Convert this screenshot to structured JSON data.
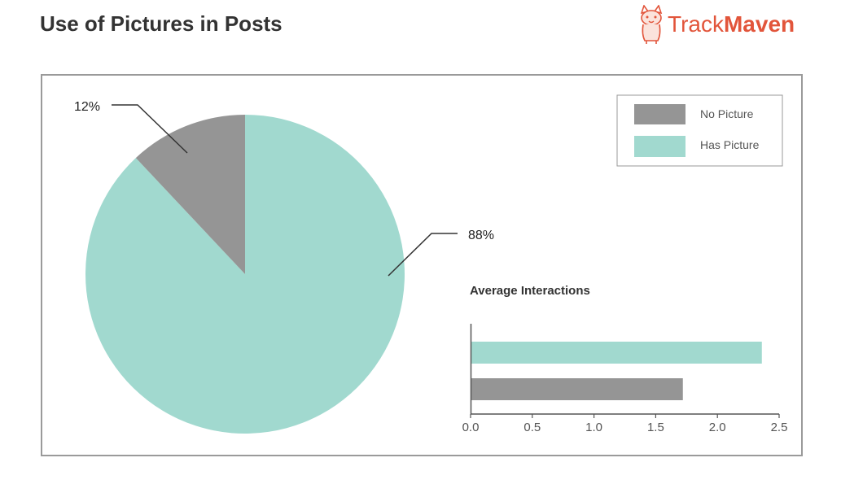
{
  "page": {
    "title": "Use of Pictures in Posts"
  },
  "brand": {
    "name_light": "Track",
    "name_bold": "Maven",
    "color": "#e2553b",
    "icon": "corgi-logo-icon"
  },
  "colors": {
    "no_picture": "#959595",
    "has_picture": "#a1d9cf",
    "axis": "#555555"
  },
  "chart_data": [
    {
      "type": "pie",
      "labels": [
        "No Picture",
        "Has Picture"
      ],
      "values": [
        12,
        88
      ],
      "value_labels": [
        "12%",
        "88%"
      ],
      "start_angle": "12 o'clock, clockwise",
      "legend": {
        "position": "top-right",
        "entries": [
          "No Picture",
          "Has Picture"
        ]
      }
    },
    {
      "type": "bar",
      "orientation": "horizontal",
      "title": "Average Interactions",
      "categories": [
        "Has Picture",
        "No Picture"
      ],
      "values": [
        2.36,
        1.72
      ],
      "xlim": [
        0,
        2.5
      ],
      "xticks": [
        "0.0",
        "0.5",
        "1.0",
        "1.5",
        "2.0",
        "2.5"
      ],
      "tick_values": [
        0,
        0.5,
        1.0,
        1.5,
        2.0,
        2.5
      ],
      "grid": false
    }
  ]
}
